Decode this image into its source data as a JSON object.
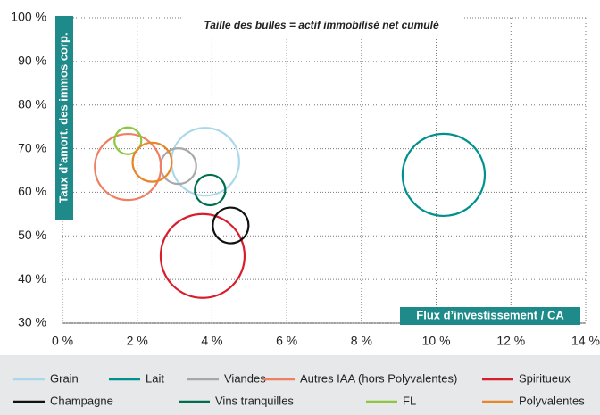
{
  "chart_data": {
    "type": "bubble",
    "annotation": "Taille des bulles = actif immobilisé net cumulé",
    "y_label": "Taux d’amort. des immos corp.",
    "x_label": "Flux d’investissement / CA",
    "xlim": [
      0,
      14
    ],
    "ylim": [
      30,
      100
    ],
    "xticks": [
      {
        "value": 0,
        "label": "0 %"
      },
      {
        "value": 2,
        "label": "2 %"
      },
      {
        "value": 4,
        "label": "4 %"
      },
      {
        "value": 6,
        "label": "6 %"
      },
      {
        "value": 8,
        "label": "8 %"
      },
      {
        "value": 10,
        "label": "10 %"
      },
      {
        "value": 12,
        "label": "12 %"
      },
      {
        "value": 14,
        "label": "14 %"
      }
    ],
    "yticks": [
      {
        "value": 30,
        "label": "30 %"
      },
      {
        "value": 40,
        "label": "40 %"
      },
      {
        "value": 50,
        "label": "50 %"
      },
      {
        "value": 60,
        "label": "60 %"
      },
      {
        "value": 70,
        "label": "70 %"
      },
      {
        "value": 80,
        "label": "80 %"
      },
      {
        "value": 90,
        "label": "90 %"
      },
      {
        "value": 100,
        "label": "100 %"
      }
    ],
    "grid": true,
    "series": [
      {
        "name": "Grain",
        "color": "#a9d8ea",
        "x": 3.82,
        "y": 67,
        "size": 14.4
      },
      {
        "name": "Lait",
        "color": "#00918e",
        "x": 10.2,
        "y": 64,
        "size": 21.2
      },
      {
        "name": "Viandes",
        "color": "#a8a8a8",
        "x": 3.1,
        "y": 66,
        "size": 4
      },
      {
        "name": "Autres IAA  (hors Polyvalentes)",
        "color": "#ef7f63",
        "x": 1.75,
        "y": 65.8,
        "size": 13.7
      },
      {
        "name": "Spiritueux",
        "color": "#d81e2c",
        "x": 3.75,
        "y": 45.4,
        "size": 22.1
      },
      {
        "name": "Champagne",
        "color": "#111111",
        "x": 4.5,
        "y": 52.4,
        "size": 4
      },
      {
        "name": "Vins tranquilles",
        "color": "#006e4e",
        "x": 3.95,
        "y": 60.5,
        "size": 2.9
      },
      {
        "name": "FL",
        "color": "#8dc63f",
        "x": 1.75,
        "y": 71.8,
        "size": 2.25
      },
      {
        "name": "Polyvalentes",
        "color": "#e8862a",
        "x": 2.4,
        "y": 66.9,
        "size": 4.8
      }
    ]
  }
}
